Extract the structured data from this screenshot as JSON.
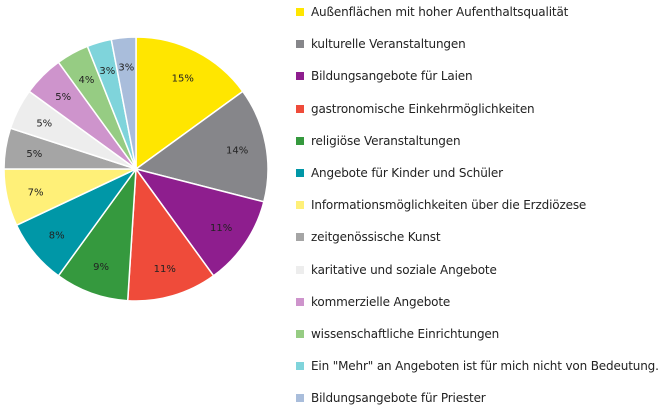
{
  "chart_data": {
    "type": "pie",
    "title": "",
    "legend_position": "right",
    "series": [
      {
        "name": "",
        "slices": [
          {
            "label": "Außenflächen mit hoher Aufenthaltsqualität",
            "value": 15,
            "value_label": "15%",
            "color": "#FFE600"
          },
          {
            "label": "kulturelle Veranstaltungen",
            "value": 14,
            "value_label": "14%",
            "color": "#86868A"
          },
          {
            "label": "Bildungsangebote für Laien",
            "value": 11,
            "value_label": "11%",
            "color": "#8E1E8E"
          },
          {
            "label": "gastronomische Einkehrmöglichkeiten",
            "value": 11,
            "value_label": "11%",
            "color": "#EF4B3A"
          },
          {
            "label": "religiöse Veranstaltungen",
            "value": 9,
            "value_label": "9%",
            "color": "#35993E"
          },
          {
            "label": "Angebote für Kinder und Schüler",
            "value": 8,
            "value_label": "8%",
            "color": "#0097A7"
          },
          {
            "label": "Informationsmöglichkeiten über die Erzdiözese",
            "value": 7,
            "value_label": "7%",
            "color": "#FFF078"
          },
          {
            "label": "zeitgenössische Kunst",
            "value": 5,
            "value_label": "5%",
            "color": "#A5A5A5"
          },
          {
            "label": "karitative und soziale Angebote",
            "value": 5,
            "value_label": "5%",
            "color": "#EDEDED"
          },
          {
            "label": "kommerzielle Angebote",
            "value": 5,
            "value_label": "5%",
            "color": "#CE94CC"
          },
          {
            "label": "wissenschaftliche Einrichtungen",
            "value": 4,
            "value_label": "4%",
            "color": "#96CC83"
          },
          {
            "label": "Ein \"Mehr\" an Angeboten ist für mich nicht von Bedeutung.",
            "value": 3,
            "value_label": "3%",
            "color": "#7FD4DB"
          },
          {
            "label": "Bildungsangebote für Priester",
            "value": 3,
            "value_label": "3%",
            "color": "#A9BDDB"
          }
        ]
      }
    ]
  }
}
